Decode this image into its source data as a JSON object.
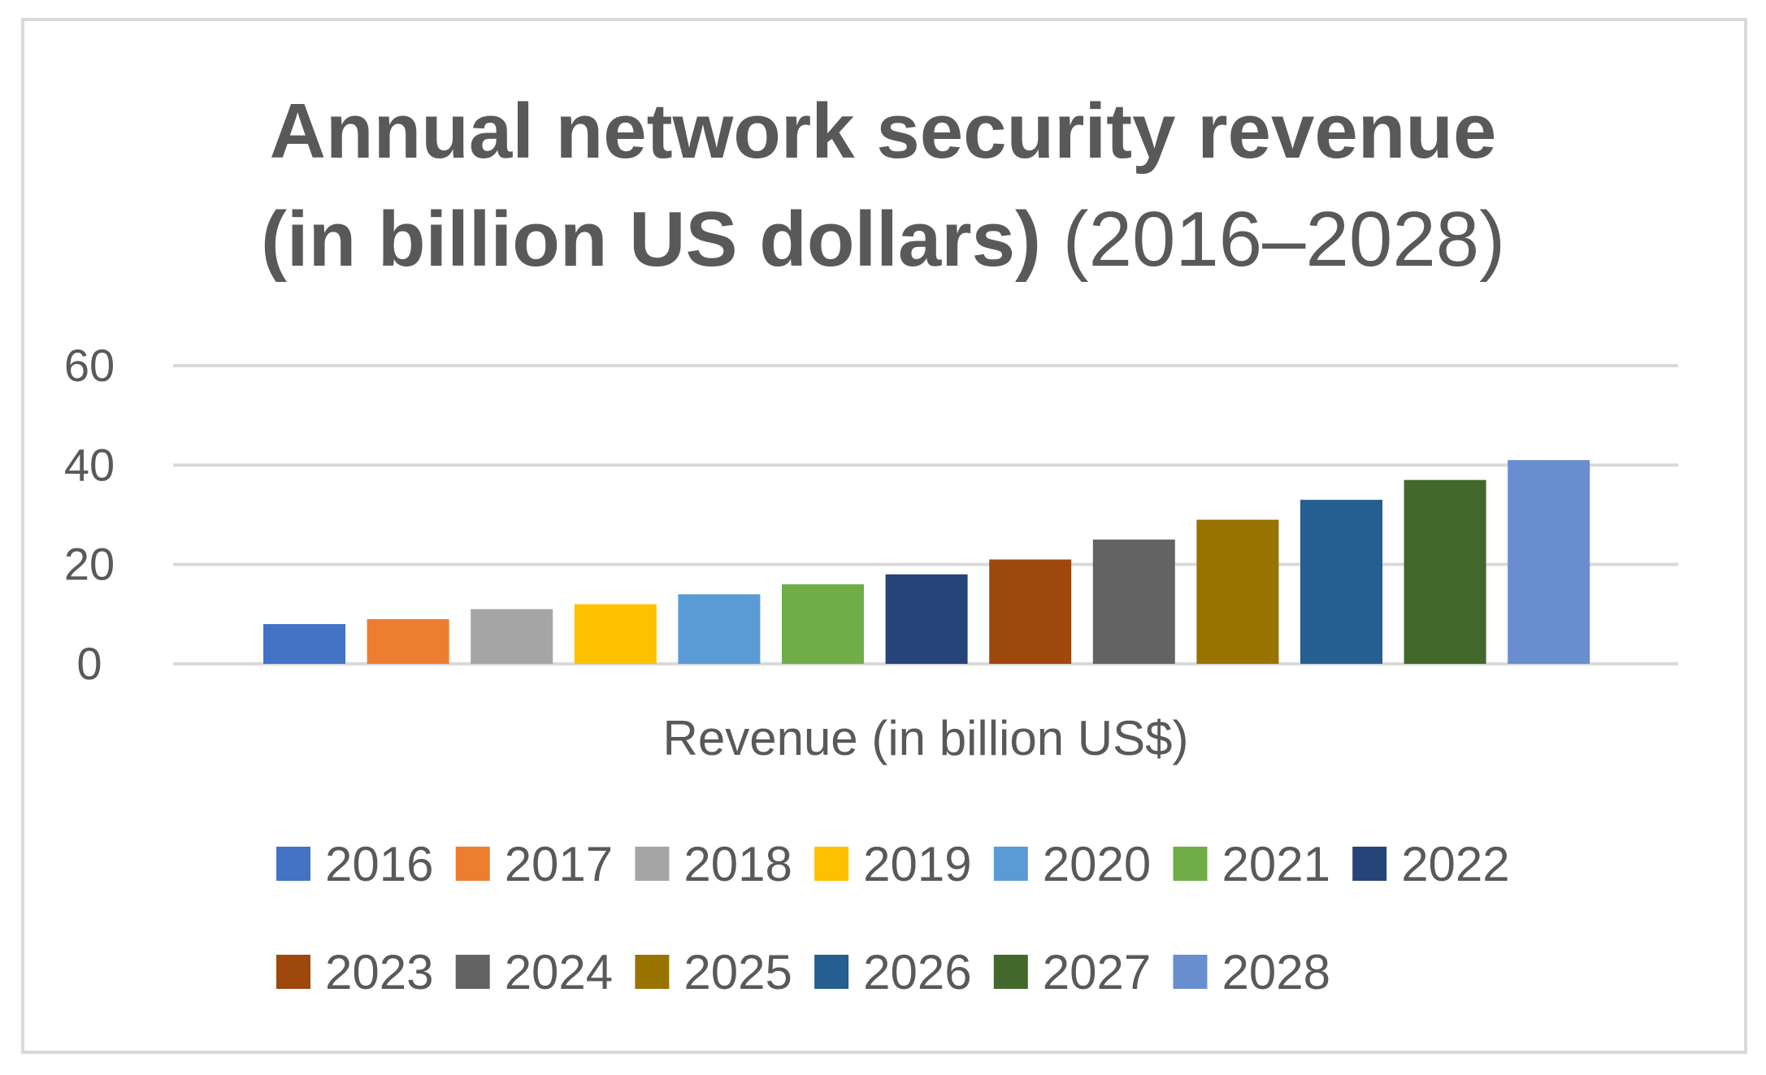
{
  "title": {
    "line1": "Annual network security revenue",
    "line2_bold": "(in billion US dollars)",
    "line2_normal": "(2016–2028)"
  },
  "chart_data": {
    "type": "bar",
    "title": "Annual network security revenue (in billion US dollars) (2016–2028)",
    "xlabel": "Revenue (in billion US$)",
    "ylabel": "",
    "ylim": [
      0,
      60
    ],
    "yticks": [
      0,
      20,
      40,
      60
    ],
    "grid": true,
    "legend_position": "bottom",
    "series": [
      {
        "name": "2016",
        "values": [
          8
        ],
        "color": "#4472c4"
      },
      {
        "name": "2017",
        "values": [
          9
        ],
        "color": "#ed7d31"
      },
      {
        "name": "2018",
        "values": [
          11
        ],
        "color": "#a5a5a5"
      },
      {
        "name": "2019",
        "values": [
          12
        ],
        "color": "#ffc000"
      },
      {
        "name": "2020",
        "values": [
          14
        ],
        "color": "#5b9bd5"
      },
      {
        "name": "2021",
        "values": [
          16
        ],
        "color": "#70ad47"
      },
      {
        "name": "2022",
        "values": [
          18
        ],
        "color": "#264478"
      },
      {
        "name": "2023",
        "values": [
          21
        ],
        "color": "#9e480e"
      },
      {
        "name": "2024",
        "values": [
          25
        ],
        "color": "#636363"
      },
      {
        "name": "2025",
        "values": [
          29
        ],
        "color": "#997300"
      },
      {
        "name": "2026",
        "values": [
          33
        ],
        "color": "#255e91"
      },
      {
        "name": "2027",
        "values": [
          37
        ],
        "color": "#43682b"
      },
      {
        "name": "2028",
        "values": [
          41
        ],
        "color": "#698ed0"
      }
    ]
  }
}
